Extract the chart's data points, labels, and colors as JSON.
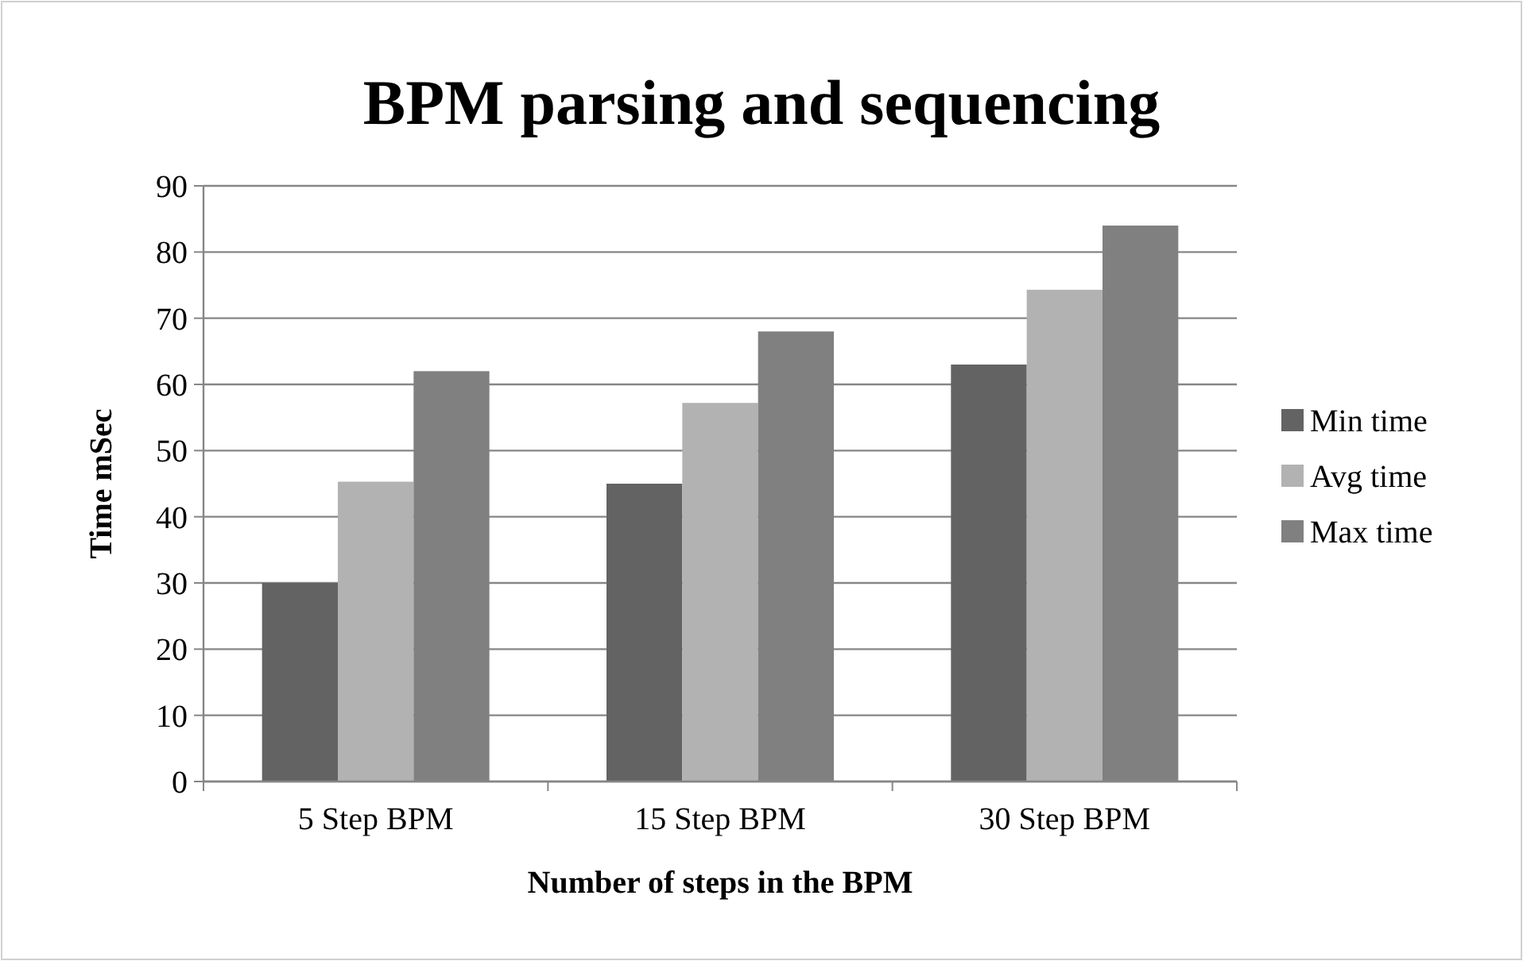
{
  "chart_data": {
    "type": "bar",
    "title": "BPM parsing and sequencing",
    "xlabel": "Number of steps in the BPM",
    "ylabel": "Time mSec",
    "categories": [
      "5 Step BPM",
      "15 Step BPM",
      "30 Step BPM"
    ],
    "series": [
      {
        "name": "Min time",
        "color": "#636363",
        "values": [
          30,
          45,
          63
        ]
      },
      {
        "name": "Avg time",
        "color": "#b2b2b2",
        "values": [
          45.3,
          57.2,
          74.3
        ]
      },
      {
        "name": "Max time",
        "color": "#808080",
        "values": [
          62,
          68,
          84
        ]
      }
    ],
    "ylim": [
      0,
      90
    ],
    "yticks": [
      0,
      10,
      20,
      30,
      40,
      50,
      60,
      70,
      80,
      90
    ],
    "grid": "y",
    "legend": "right"
  }
}
